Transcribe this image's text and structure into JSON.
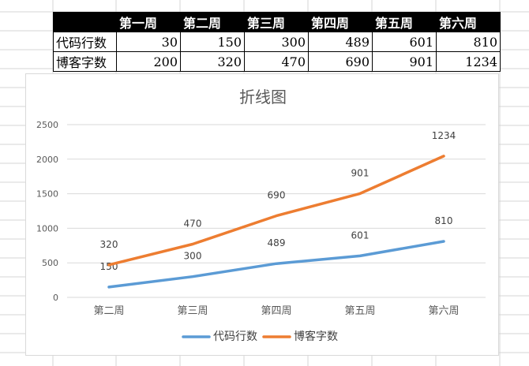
{
  "table": {
    "headers": [
      "第一周",
      "第二周",
      "第三周",
      "第四周",
      "第五周",
      "第六周"
    ],
    "rows": [
      {
        "label": "代码行数",
        "values": [
          "30",
          "150",
          "300",
          "489",
          "601",
          "810"
        ]
      },
      {
        "label": "博客字数",
        "values": [
          "200",
          "320",
          "470",
          "690",
          "901",
          "1234"
        ]
      }
    ]
  },
  "chart_data": {
    "type": "line",
    "title": "折线图",
    "categories": [
      "第二周",
      "第三周",
      "第四周",
      "第五周",
      "第六周"
    ],
    "series": [
      {
        "name": "代码行数",
        "color": "#5B9BD5",
        "values": [
          150,
          300,
          489,
          601,
          810
        ]
      },
      {
        "name": "博客字数",
        "color": "#ED7D31",
        "values": [
          320,
          470,
          690,
          901,
          1234
        ]
      }
    ],
    "plotted_values": {
      "代码行数": [
        150,
        300,
        489,
        601,
        810
      ],
      "博客字数": [
        470,
        770,
        1180,
        1502,
        2044
      ]
    },
    "y_ticks": [
      0,
      500,
      1000,
      1500,
      2000,
      2500
    ],
    "ylim": [
      0,
      2500
    ],
    "grid": true,
    "legend": "bottom",
    "xlabel": "",
    "ylabel": ""
  }
}
